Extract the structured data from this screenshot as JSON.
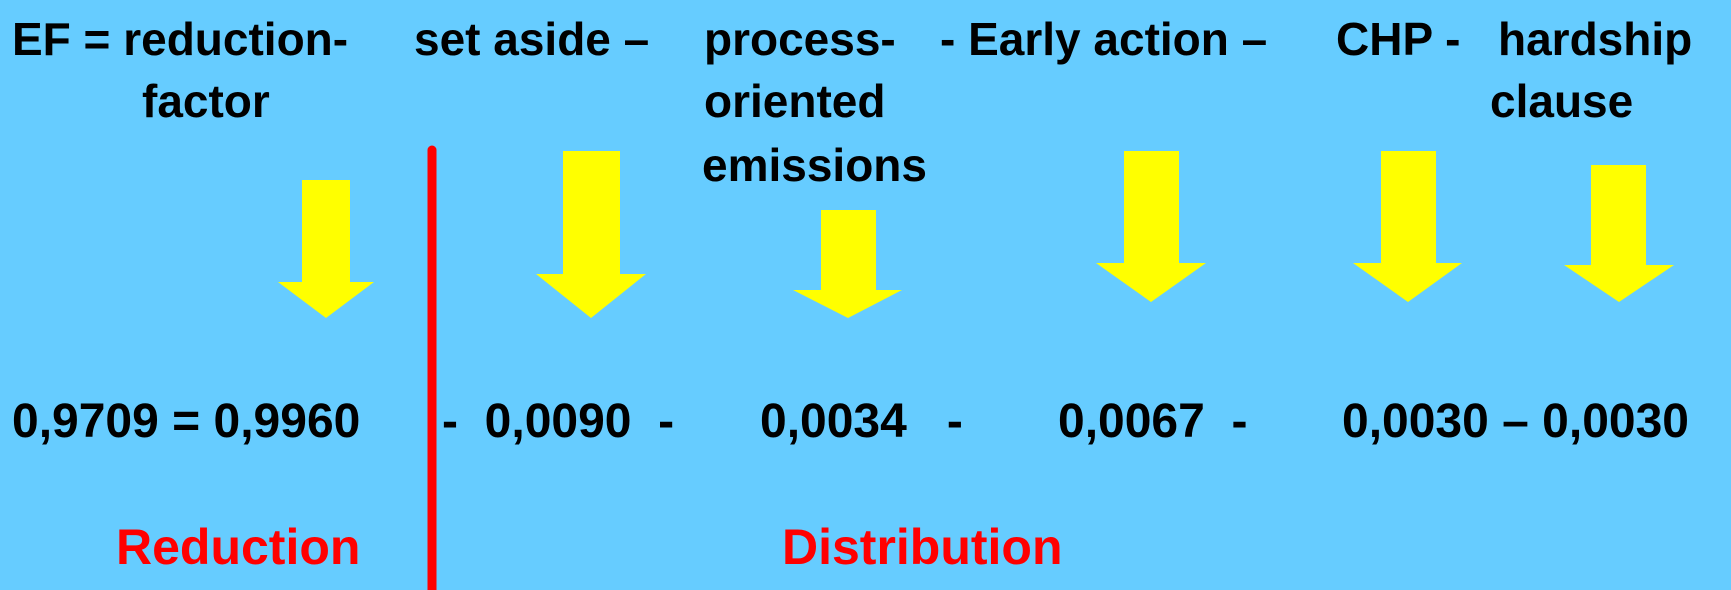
{
  "colors": {
    "background": "#66ccff",
    "arrow": "#ffff00",
    "divider": "#ff0000",
    "label": "#ff0000",
    "text": "#000000"
  },
  "header": {
    "ef": "EF = reduction-",
    "ef_line2": "factor",
    "set_aside": "set aside –",
    "process_line1": "process-",
    "process_line2": "oriented",
    "process_line3": "emissions",
    "early_action": "- Early action –",
    "chp": "CHP -",
    "hardship_line1": "hardship",
    "hardship_line2": "clause"
  },
  "equation": {
    "ef_value": "0,9709 = 0,9960",
    "set_aside_value": "-  0,0090  -",
    "process_value": "0,0034   -",
    "early_action_value": "0,0067  -",
    "chp_hardship_value": "0,0030 – 0,0030"
  },
  "labels": {
    "reduction": "Reduction",
    "distribution": "Distribution"
  },
  "arrow_icons": [
    "arrow-down-icon",
    "arrow-down-icon",
    "arrow-down-icon",
    "arrow-down-icon",
    "arrow-down-icon",
    "arrow-down-icon"
  ]
}
